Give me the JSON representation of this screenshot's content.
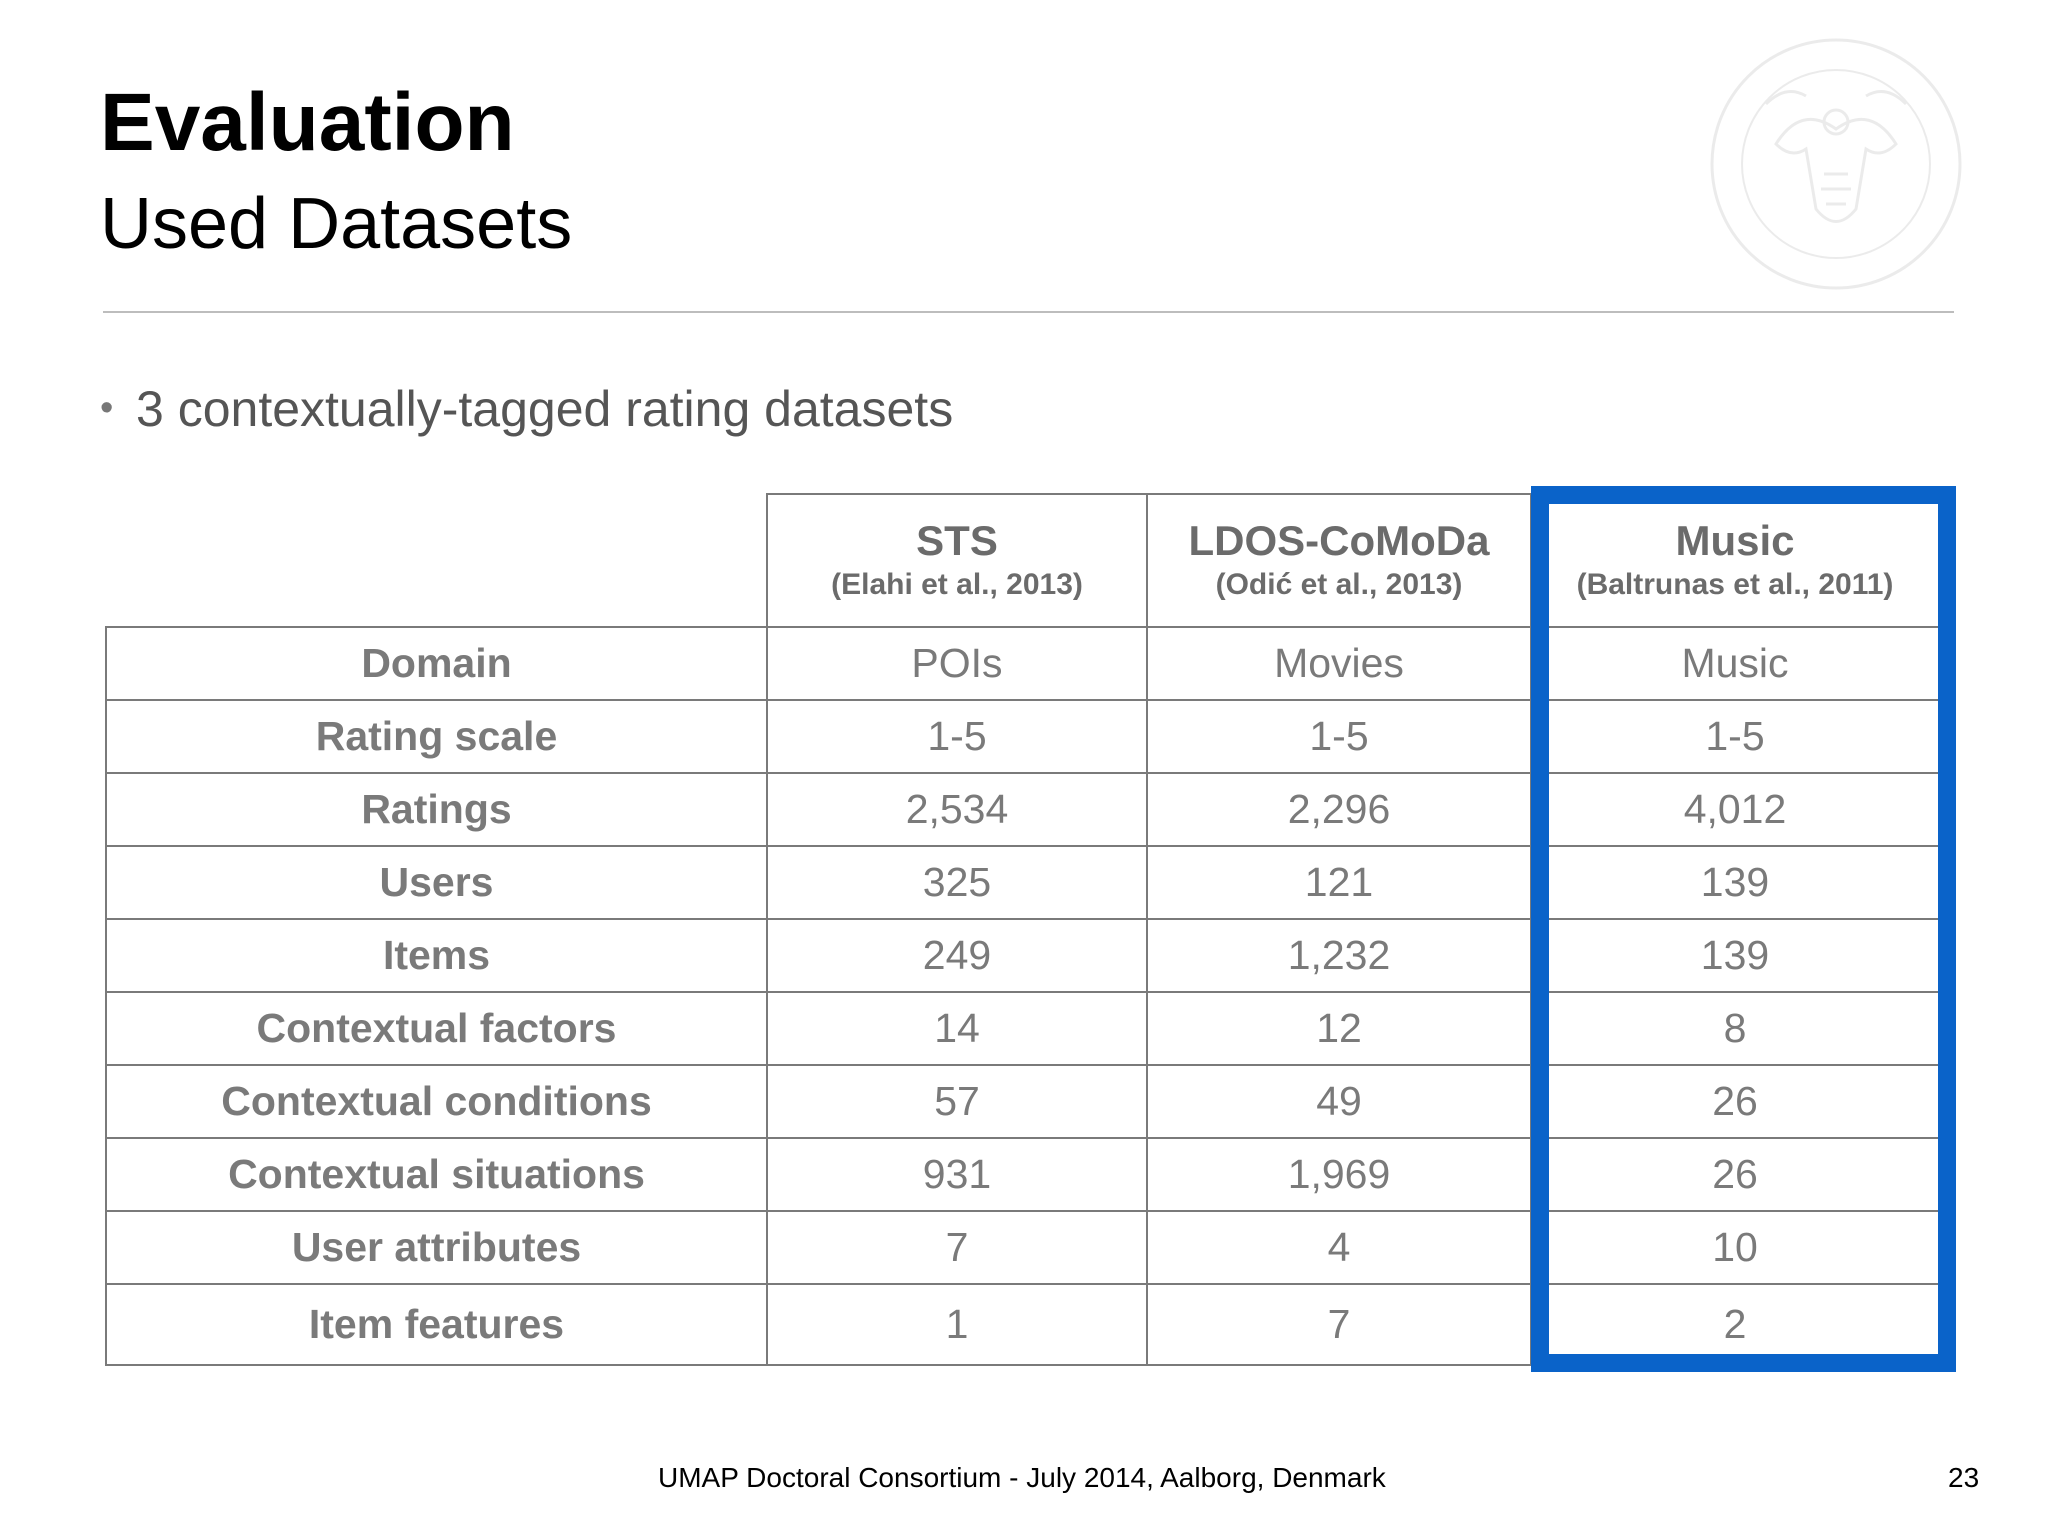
{
  "slide": {
    "title": "Evaluation",
    "subtitle": "Used Datasets",
    "bullet": "3 contextually-tagged rating datasets",
    "footer": "UMAP Doctoral Consortium - July 2014, Aalborg, Denmark",
    "page_number": "23",
    "highlight_color": "#0a63c9"
  },
  "table": {
    "columns": [
      {
        "name": "STS",
        "reference": "(Elahi et al., 2013)"
      },
      {
        "name": "LDOS-CoMoDa",
        "reference": "(Odić et al., 2013)"
      },
      {
        "name": "Music",
        "reference": "(Baltrunas et al., 2011)"
      }
    ],
    "rows": [
      {
        "label": "Domain",
        "values": [
          "POIs",
          "Movies",
          "Music"
        ]
      },
      {
        "label": "Rating scale",
        "values": [
          "1-5",
          "1-5",
          "1-5"
        ]
      },
      {
        "label": "Ratings",
        "values": [
          "2,534",
          "2,296",
          "4,012"
        ]
      },
      {
        "label": "Users",
        "values": [
          "325",
          "121",
          "139"
        ]
      },
      {
        "label": "Items",
        "values": [
          "249",
          "1,232",
          "139"
        ]
      },
      {
        "label": "Contextual factors",
        "values": [
          "14",
          "12",
          "8"
        ]
      },
      {
        "label": "Contextual conditions",
        "values": [
          "57",
          "49",
          "26"
        ]
      },
      {
        "label": "Contextual situations",
        "values": [
          "931",
          "1,969",
          "26"
        ]
      },
      {
        "label": "User attributes",
        "values": [
          "7",
          "4",
          "10"
        ]
      },
      {
        "label": "Item features",
        "values": [
          "1",
          "7",
          "2"
        ]
      }
    ]
  }
}
